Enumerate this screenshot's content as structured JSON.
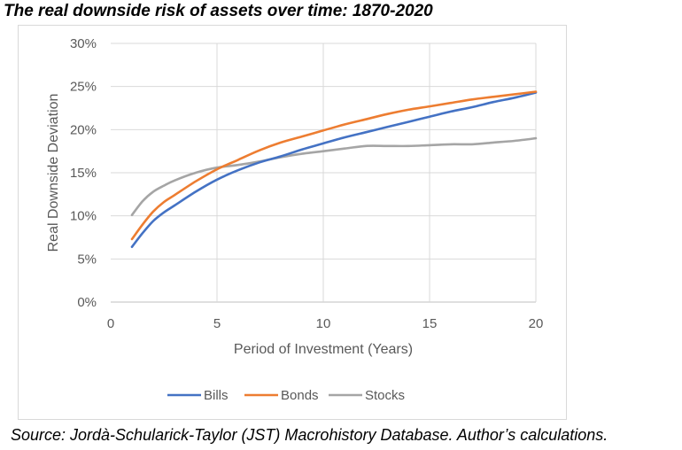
{
  "title": "The real downside risk of assets over time: 1870-2020",
  "source": "Source: Jordà-Schularick-Taylor (JST) Macrohistory Database. Author’s calculations.",
  "chart_data": {
    "type": "line",
    "xlabel": "Period of Investment (Years)",
    "ylabel": "Real Downside Deviation",
    "xlim": [
      0,
      20
    ],
    "ylim": [
      0,
      30
    ],
    "x_ticks": [
      "0",
      "5",
      "10",
      "15",
      "20"
    ],
    "y_ticks": [
      "0%",
      "5%",
      "10%",
      "15%",
      "20%",
      "25%",
      "30%"
    ],
    "grid": true,
    "legend_position": "bottom",
    "x": [
      1,
      1.5,
      2,
      2.5,
      3,
      4,
      5,
      6,
      7,
      8,
      9,
      10,
      11,
      12,
      13,
      14,
      15,
      16,
      17,
      18,
      19,
      20
    ],
    "series": [
      {
        "name": "Bills",
        "color": "#4472c4",
        "values": [
          6.4,
          8.0,
          9.4,
          10.4,
          11.2,
          12.8,
          14.2,
          15.3,
          16.2,
          16.9,
          17.7,
          18.4,
          19.1,
          19.7,
          20.3,
          20.9,
          21.5,
          22.1,
          22.6,
          23.2,
          23.7,
          24.3
        ]
      },
      {
        "name": "Bonds",
        "color": "#ed7d31",
        "values": [
          7.3,
          9.0,
          10.5,
          11.6,
          12.4,
          14.0,
          15.4,
          16.5,
          17.6,
          18.5,
          19.2,
          19.9,
          20.6,
          21.2,
          21.8,
          22.3,
          22.7,
          23.1,
          23.5,
          23.8,
          24.1,
          24.4
        ]
      },
      {
        "name": "Stocks",
        "color": "#a5a5a5",
        "values": [
          10.1,
          11.7,
          12.8,
          13.5,
          14.1,
          15.0,
          15.6,
          15.9,
          16.3,
          16.8,
          17.2,
          17.5,
          17.8,
          18.1,
          18.1,
          18.1,
          18.2,
          18.3,
          18.3,
          18.5,
          18.7,
          19.0
        ]
      }
    ]
  }
}
